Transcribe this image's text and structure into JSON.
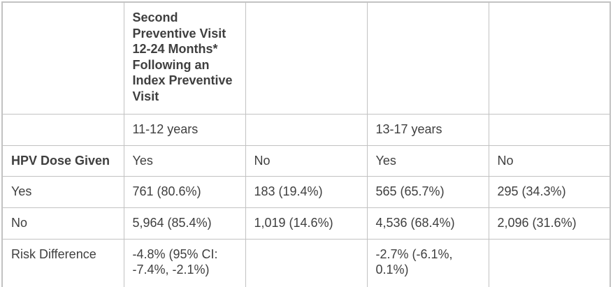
{
  "colors": {
    "text": "#3f3f3f",
    "border": "#c2c2c2",
    "background": "#ffffff"
  },
  "table": {
    "span_header": "Second Preventive Visit 12-24 Months* Following an Index Preventive Visit",
    "age_row": {
      "group1": "11-12 years",
      "group2": "13-17 years"
    },
    "dose_row": {
      "label": "HPV Dose Given",
      "cells": [
        "Yes",
        "No",
        "Yes",
        "No"
      ]
    },
    "data_rows": [
      {
        "label": "Yes",
        "cells": [
          "761 (80.6%)",
          "183 (19.4%)",
          "565 (65.7%)",
          "295 (34.3%)"
        ]
      },
      {
        "label": "No",
        "cells": [
          "5,964 (85.4%)",
          "1,019 (14.6%)",
          "4,536 (68.4%)",
          "2,096 (31.6%)"
        ]
      },
      {
        "label": "Risk Difference",
        "cells": [
          "-4.8% (95% CI: -7.4%, -2.1%)",
          "",
          "-2.7% (-6.1%, 0.1%)",
          ""
        ]
      }
    ]
  }
}
